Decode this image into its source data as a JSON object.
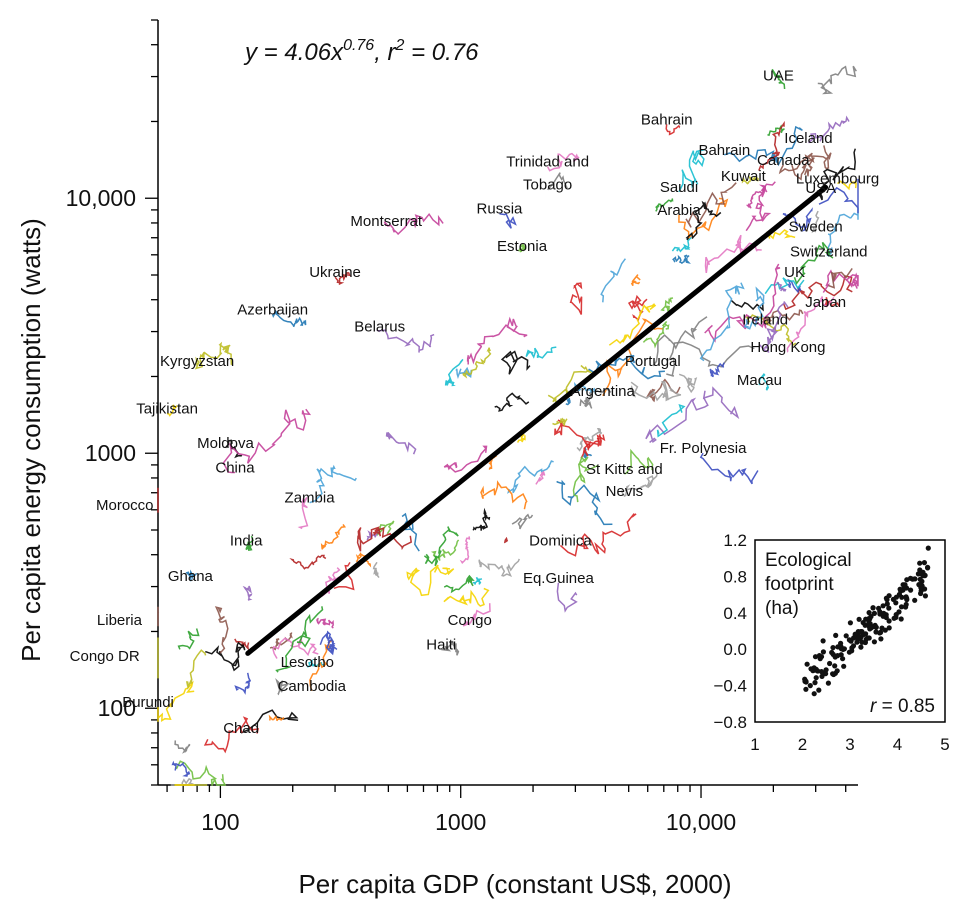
{
  "chart_data": {
    "type": "line",
    "xlabel": "Per capita GDP (constant US$, 2000)",
    "ylabel": "Per capita energy consumption (watts)",
    "x_scale": "log",
    "y_scale": "log",
    "xlim": [
      55,
      45000
    ],
    "ylim": [
      50,
      50000
    ],
    "x_ticks": [
      100,
      1000,
      10000
    ],
    "x_tick_labels": [
      "100",
      "1000",
      "10,000"
    ],
    "y_ticks": [
      100,
      1000,
      10000
    ],
    "y_tick_labels": [
      "100",
      "1000",
      "10,000"
    ],
    "grid": false,
    "equation": {
      "prefix": "y = 4.06x",
      "exponent": "0.76",
      "sep": ", r",
      "r2sup": "2",
      "suffix": " = 0.76"
    },
    "fit_line": {
      "name": "",
      "a": 4.06,
      "b": 0.76,
      "x": [
        130,
        33000
      ]
    },
    "country_labels": [
      {
        "text": "UAE",
        "gdp": 21000,
        "energy": 29000
      },
      {
        "text": "Bahrain",
        "gdp": 7200,
        "energy": 19500
      },
      {
        "text": "Bahrain",
        "gdp": 12500,
        "energy": 14800
      },
      {
        "text": "Iceland",
        "gdp": 28000,
        "energy": 16500
      },
      {
        "text": "Canada",
        "gdp": 22000,
        "energy": 13500
      },
      {
        "text": "Trinidad and",
        "gdp": 2300,
        "energy": 13300
      },
      {
        "text": "Tobago",
        "gdp": 2300,
        "energy": 10800
      },
      {
        "text": "Kuwait",
        "gdp": 15000,
        "energy": 11700
      },
      {
        "text": "Saudi",
        "gdp": 8100,
        "energy": 10600
      },
      {
        "text": "Arabia",
        "gdp": 8100,
        "energy": 8600
      },
      {
        "text": "Luxembourg",
        "gdp": 37000,
        "energy": 11400
      },
      {
        "text": "USA",
        "gdp": 31500,
        "energy": 10500
      },
      {
        "text": "Russia",
        "gdp": 1450,
        "energy": 8700
      },
      {
        "text": "Montserrat",
        "gdp": 490,
        "energy": 7800
      },
      {
        "text": "Estonia",
        "gdp": 1800,
        "energy": 6200
      },
      {
        "text": "Sweden",
        "gdp": 30000,
        "energy": 7400
      },
      {
        "text": "Switzerland",
        "gdp": 34000,
        "energy": 5900
      },
      {
        "text": "Ukraine",
        "gdp": 300,
        "energy": 4900
      },
      {
        "text": "UK",
        "gdp": 24500,
        "energy": 4900
      },
      {
        "text": "Japan",
        "gdp": 33000,
        "energy": 3750
      },
      {
        "text": "Azerbaijan",
        "gdp": 165,
        "energy": 3500
      },
      {
        "text": "Belarus",
        "gdp": 460,
        "energy": 3000
      },
      {
        "text": "Ireland",
        "gdp": 18500,
        "energy": 3200
      },
      {
        "text": "Hong Kong",
        "gdp": 23000,
        "energy": 2500
      },
      {
        "text": "Portugal",
        "gdp": 6300,
        "energy": 2200
      },
      {
        "text": "Kyrgyzstan",
        "gdp": 80,
        "energy": 2200
      },
      {
        "text": "Macau",
        "gdp": 17500,
        "energy": 1850
      },
      {
        "text": "Argentina",
        "gdp": 3900,
        "energy": 1680
      },
      {
        "text": "Tajikistan",
        "gdp": 60,
        "energy": 1430
      },
      {
        "text": "Moldova",
        "gdp": 105,
        "energy": 1050
      },
      {
        "text": "Fr. Polynesia",
        "gdp": 10200,
        "energy": 1000
      },
      {
        "text": "China",
        "gdp": 115,
        "energy": 840
      },
      {
        "text": "St Kitts and",
        "gdp": 4800,
        "energy": 830
      },
      {
        "text": "Nevis",
        "gdp": 4800,
        "energy": 680
      },
      {
        "text": "Zambia",
        "gdp": 235,
        "energy": 640
      },
      {
        "text": "Morocco",
        "gdp": 40,
        "energy": 600
      },
      {
        "text": "India",
        "gdp": 128,
        "energy": 435
      },
      {
        "text": "Dominica",
        "gdp": 2600,
        "energy": 435
      },
      {
        "text": "Ghana",
        "gdp": 75,
        "energy": 315
      },
      {
        "text": "Eq.Guinea",
        "gdp": 2550,
        "energy": 310
      },
      {
        "text": "Liberia",
        "gdp": 38,
        "energy": 212
      },
      {
        "text": "Congo",
        "gdp": 1090,
        "energy": 212
      },
      {
        "text": "Haiti",
        "gdp": 830,
        "energy": 170
      },
      {
        "text": "Congo DR",
        "gdp": 33,
        "energy": 153
      },
      {
        "text": "Lesotho",
        "gdp": 230,
        "energy": 145
      },
      {
        "text": "Cambodia",
        "gdp": 240,
        "energy": 117
      },
      {
        "text": "Burundi",
        "gdp": 50,
        "energy": 101
      },
      {
        "text": "Chad",
        "gdp": 122,
        "energy": 80
      }
    ],
    "inset": {
      "type": "scatter",
      "title_lines": [
        "Ecological",
        "footprint",
        "(ha)"
      ],
      "r_label": "r",
      "r_value": " = 0.85",
      "xlim": [
        1,
        5
      ],
      "ylim": [
        -0.8,
        1.2
      ],
      "x_ticks": [
        1,
        2,
        3,
        4,
        5
      ],
      "x_tick_labels": [
        "1",
        "2",
        "3",
        "4",
        "5"
      ],
      "y_ticks": [
        1.2,
        0.8,
        0.4,
        0.0,
        -0.4,
        -0.8
      ],
      "y_tick_labels": [
        "1.2",
        "0.8",
        "0.4",
        "0.0",
        "−0.4",
        "−0.8"
      ],
      "fit": {
        "slope": 0.45,
        "intercept": -1.27
      },
      "point_count": 170,
      "colors": {
        "point": "#111111"
      }
    },
    "colors": {
      "fit_line": "#000000",
      "axis": "#000000",
      "trajectories": [
        "#2ca02c",
        "#d62728",
        "#1f77b4",
        "#9467bd",
        "#8c564b",
        "#e377c2",
        "#7f7f7f",
        "#bcbd22",
        "#17becf",
        "#ff7f0e",
        "#f5d400",
        "#000000",
        "#3b4cc0",
        "#c4419a",
        "#6fbf3f",
        "#a0a0a0",
        "#4aa3d8",
        "#b22222"
      ]
    }
  }
}
